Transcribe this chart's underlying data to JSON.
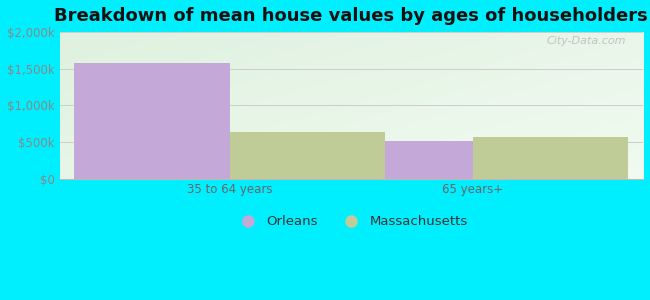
{
  "title": "Breakdown of mean house values by ages of householders",
  "categories": [
    "35 to 64 years",
    "65 years+"
  ],
  "orleans_values": [
    1580000,
    520000
  ],
  "massachusetts_values": [
    640000,
    570000
  ],
  "orleans_color": "#c4a8d8",
  "massachusetts_color": "#c0cc98",
  "ylim": [
    0,
    2000000
  ],
  "yticks": [
    0,
    500000,
    1000000,
    1500000,
    2000000
  ],
  "ytick_labels": [
    "$0",
    "$500k",
    "$1,000k",
    "$1,500k",
    "$2,000k"
  ],
  "background_outer": "#00efff",
  "background_plot_tl": "#d8edd8",
  "background_plot_tr": "#f0faf0",
  "background_plot_br": "#ffffff",
  "watermark": "City-Data.com",
  "legend_labels": [
    "Orleans",
    "Massachusetts"
  ],
  "title_fontsize": 13,
  "tick_fontsize": 8.5,
  "legend_fontsize": 9.5,
  "bar_width": 0.32,
  "x_positions": [
    0.25,
    0.75
  ]
}
